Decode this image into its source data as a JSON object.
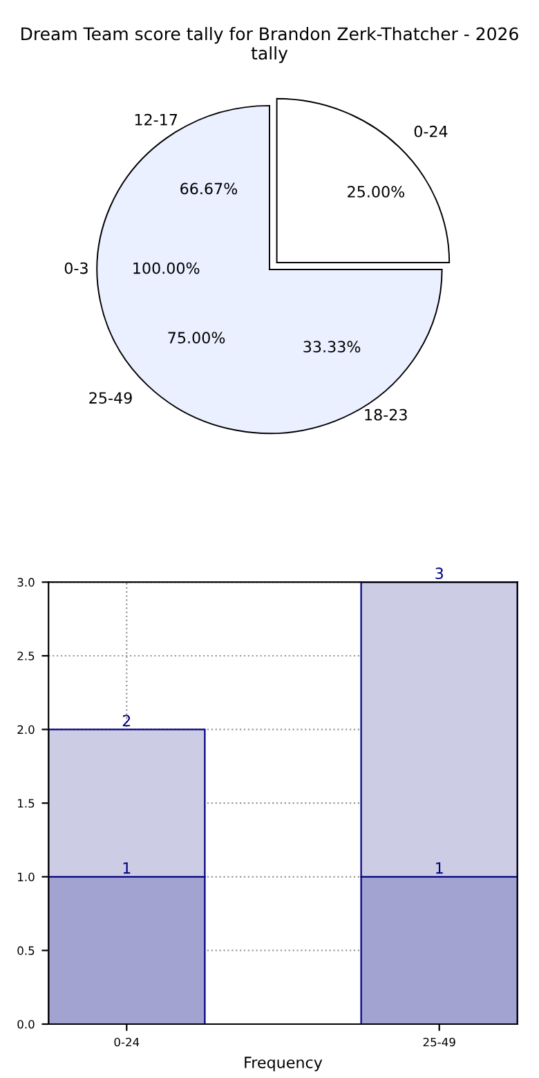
{
  "chart_data": [
    {
      "type": "pie",
      "title": "Dream Team score tally for Brandon Zerk-Thatcher - 2026 tally",
      "categories": [
        "0-24",
        "25-49"
      ],
      "values": [
        25,
        75
      ],
      "colors": [
        "#ffffff",
        "#eaf0ff"
      ],
      "value_labels": [
        "25.00%",
        "75.00%"
      ],
      "annotations": [
        "12-17",
        "66.67%",
        "0-3",
        "100.00%",
        "18-23",
        "33.33%"
      ]
    },
    {
      "type": "bar",
      "stacked": true,
      "categories": [
        "0-24",
        null,
        "25-49"
      ],
      "xlabel": "Frequency",
      "series": [
        {
          "color": "#a3a3d1",
          "values": [
            1,
            null,
            1
          ],
          "value_labels": [
            "1",
            null,
            "1"
          ]
        },
        {
          "color": "#cccce5",
          "values": [
            1,
            null,
            2
          ]
        }
      ],
      "totals": [
        "2",
        null,
        "3"
      ],
      "ylim": [
        0,
        3
      ],
      "yticks": [
        {
          "value": 0,
          "label": "0.0"
        },
        {
          "value": 0.5,
          "label": "0.5"
        },
        {
          "value": 1,
          "label": "1.0"
        },
        {
          "value": 1.5,
          "label": "1.5"
        },
        {
          "value": 2,
          "label": "2.0"
        },
        {
          "value": 2.5,
          "label": "2.5"
        },
        {
          "value": 3,
          "label": "3.0"
        }
      ],
      "grid": true,
      "legend": false
    }
  ]
}
